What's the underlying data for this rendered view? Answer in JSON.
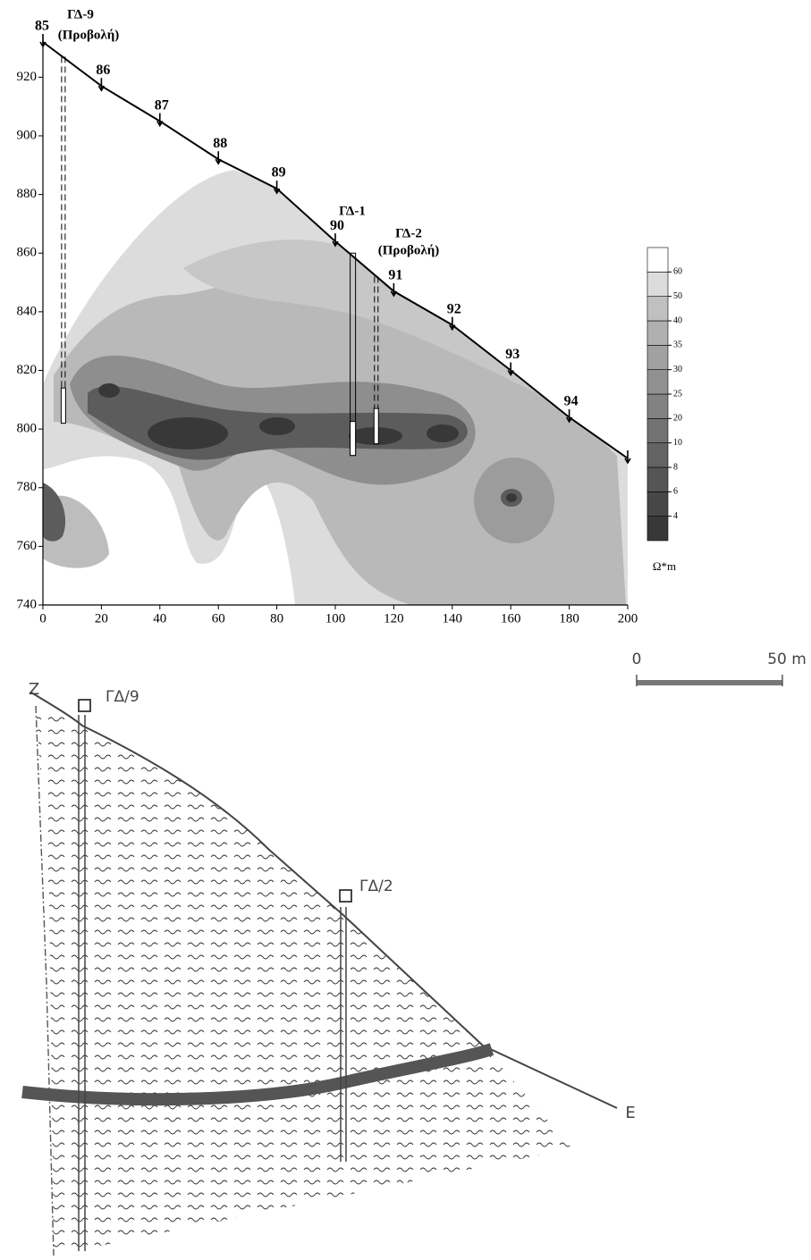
{
  "chart_data": {
    "type": "line",
    "x": [
      0,
      20,
      40,
      60,
      80,
      100,
      120,
      140,
      160,
      180,
      200
    ],
    "values": [
      932,
      917,
      905,
      892,
      882,
      864,
      847,
      835.5,
      820,
      804,
      790
    ],
    "point_labels": [
      "85",
      "86",
      "87",
      "88",
      "89",
      "90",
      "91",
      "92",
      "93",
      "94",
      null
    ],
    "color": "#000000",
    "xlim": [
      0,
      200
    ],
    "ylim": [
      740,
      932
    ],
    "xticks": [
      0,
      20,
      40,
      60,
      80,
      100,
      120,
      140,
      160,
      180,
      200
    ],
    "yticks": [
      740,
      760,
      780,
      800,
      820,
      840,
      860,
      880,
      900,
      920
    ],
    "boreholes": [
      {
        "label": "ΓΔ-9",
        "note": "(Προβολή)",
        "x": 7,
        "top": 927,
        "bottom": 802,
        "dashed": true
      },
      {
        "label": "ΓΔ-1",
        "x": 106,
        "top": 860,
        "bottom": 791,
        "dashed": false
      },
      {
        "label": "ΓΔ-2",
        "note": "(Προβολή)",
        "x": 114,
        "top": 852,
        "bottom": 795,
        "dashed": true
      }
    ],
    "colorbar": {
      "levels": [
        4,
        6,
        8,
        10,
        20,
        25,
        30,
        35,
        40,
        50,
        60
      ],
      "unit": "Ω*m"
    }
  },
  "section": {
    "scale_start": "0",
    "scale_end": "50 m",
    "left_end": "Z",
    "right_end": "E",
    "boreholes": [
      "ΓΔ/9",
      "ΓΔ/2"
    ]
  }
}
